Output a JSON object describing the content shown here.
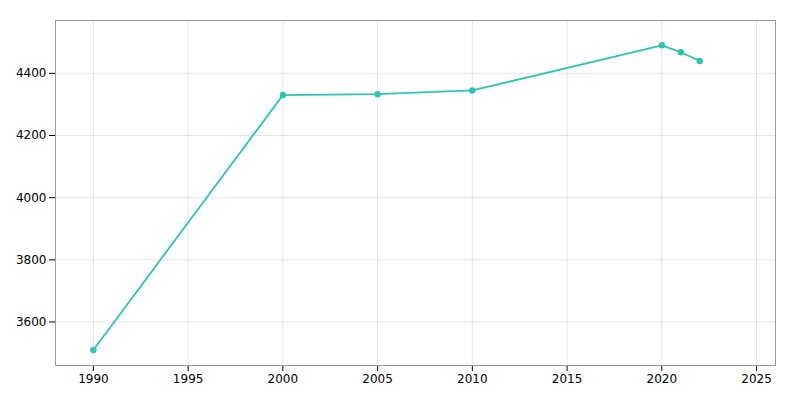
{
  "chart_data": {
    "type": "line",
    "x": [
      1990,
      2000,
      2005,
      2010,
      2020,
      2021,
      2022
    ],
    "values": [
      3510,
      4330,
      4333,
      4345,
      4490,
      4468,
      4440
    ],
    "color": "#2EC4B6",
    "marker": "circle",
    "xlim": [
      1988,
      2026
    ],
    "ylim": [
      3460,
      4570
    ],
    "xticks": [
      1990,
      1995,
      2000,
      2005,
      2010,
      2015,
      2020,
      2025
    ],
    "yticks": [
      3600,
      3800,
      4000,
      4200,
      4400
    ],
    "grid": true
  }
}
